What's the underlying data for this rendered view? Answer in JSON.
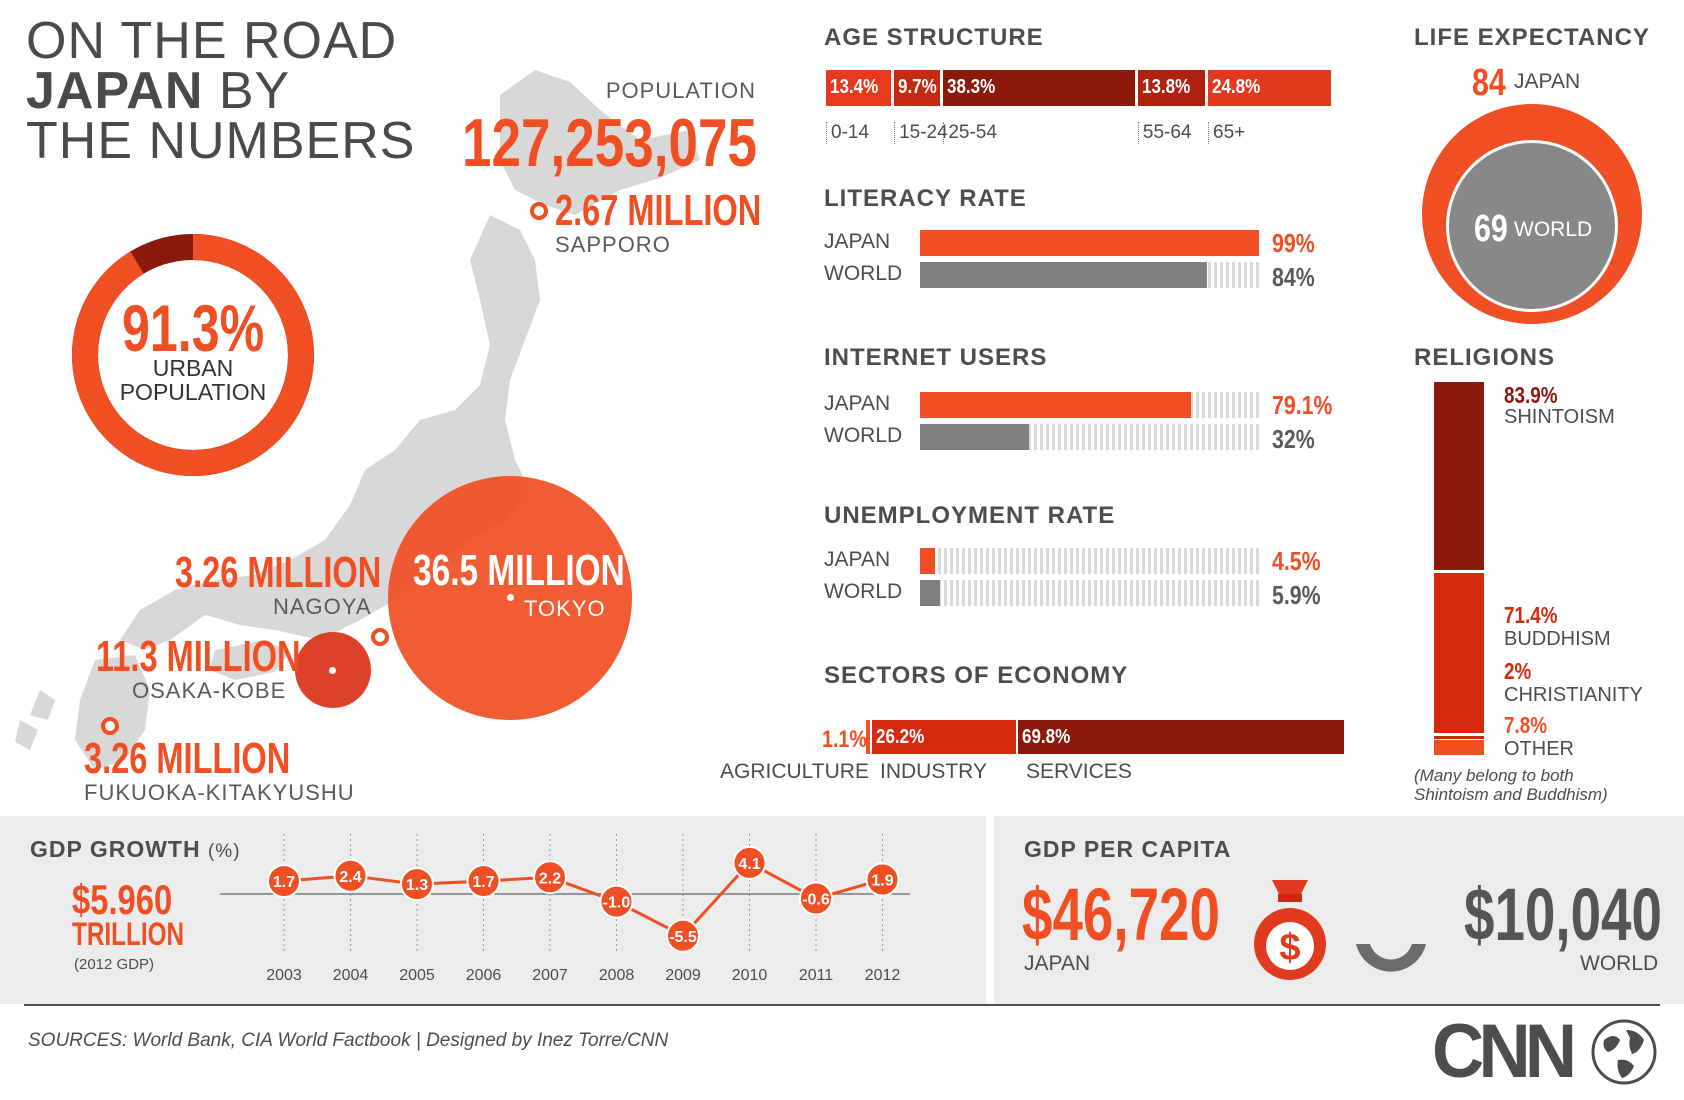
{
  "title": {
    "line1": "ON THE ROAD",
    "line2_bold": "JAPAN",
    "line2_rest": " BY",
    "line3": "THE NUMBERS"
  },
  "population": {
    "label": "POPULATION",
    "value": "127,253,075"
  },
  "urban": {
    "value": "91.3%",
    "line1": "URBAN",
    "line2": "POPULATION",
    "fraction": 0.913
  },
  "cities": {
    "sapporo": {
      "value": "2.67 MILLION",
      "name": "SAPPORO"
    },
    "tokyo": {
      "value": "36.5 MILLION",
      "name": "TOKYO"
    },
    "nagoya": {
      "value": "3.26 MILLION",
      "name": "NAGOYA"
    },
    "osaka": {
      "value": "11.3 MILLION",
      "name": "OSAKA-KOBE"
    },
    "fukuoka": {
      "value": "3.26 MILLION",
      "name": "FUKUOKA-KITAKYUSHU"
    }
  },
  "age": {
    "title": "AGE STRUCTURE",
    "segments": [
      {
        "pct": "13.4%",
        "range": "0-14",
        "value": 13.4,
        "color": "#e8391e"
      },
      {
        "pct": "9.7%",
        "range": "15-24",
        "value": 9.7,
        "color": "#c72a12"
      },
      {
        "pct": "38.3%",
        "range": "25-54",
        "value": 38.3,
        "color": "#8b1a0c"
      },
      {
        "pct": "13.8%",
        "range": "55-64",
        "value": 13.8,
        "color": "#b0220f"
      },
      {
        "pct": "24.8%",
        "range": "65+",
        "value": 24.8,
        "color": "#e23a1f"
      }
    ]
  },
  "literacy": {
    "title": "LITERACY RATE",
    "japan_label": "JAPAN",
    "world_label": "WORLD",
    "japan_pct": "99%",
    "world_pct": "84%",
    "japan": 99,
    "world": 84
  },
  "internet": {
    "title": "INTERNET USERS",
    "japan_label": "JAPAN",
    "world_label": "WORLD",
    "japan_pct": "79.1%",
    "world_pct": "32%",
    "japan": 79.1,
    "world": 32
  },
  "unemployment": {
    "title": "UNEMPLOYMENT RATE",
    "japan_label": "JAPAN",
    "world_label": "WORLD",
    "japan_pct": "4.5%",
    "world_pct": "5.9%",
    "japan": 4.5,
    "world": 5.9
  },
  "sectors": {
    "title": "SECTORS OF ECONOMY",
    "agriculture": {
      "pct": "1.1%",
      "name": "AGRICULTURE",
      "value": 1.1
    },
    "industry": {
      "pct": "26.2%",
      "name": "INDUSTRY",
      "value": 26.2
    },
    "services": {
      "pct": "69.8%",
      "name": "SERVICES",
      "value": 69.8
    }
  },
  "life": {
    "title": "LIFE EXPECTANCY",
    "japan_value": "84",
    "japan_label": "JAPAN",
    "world_value": "69",
    "world_label": "WORLD"
  },
  "religions": {
    "title": "RELIGIONS",
    "items": [
      {
        "pct": "83.9%",
        "name": "SHINTOISM",
        "value": 83.9,
        "color": "#8b1a0c"
      },
      {
        "pct": "71.4%",
        "name": "BUDDHISM",
        "value": 71.4,
        "color": "#d62a10"
      },
      {
        "pct": "2%",
        "name": "CHRISTIANITY",
        "value": 2,
        "color": "#c72a12"
      },
      {
        "pct": "7.8%",
        "name": "OTHER",
        "value": 7.8,
        "color": "#f04e23"
      }
    ],
    "note_line1": "(Many belong to both",
    "note_line2": "Shintoism and Buddhism)"
  },
  "gdp_growth": {
    "title": "GDP GROWTH",
    "unit": "(%)",
    "gdp_value": "$5.960",
    "gdp_unit": "TRILLION",
    "gdp_note": "(2012 GDP)"
  },
  "gdp_capita": {
    "title": "GDP PER CAPITA",
    "japan_value": "$46,720",
    "japan_label": "JAPAN",
    "world_value": "$10,040",
    "world_label": "WORLD"
  },
  "footer": {
    "sources": "SOURCES: World Bank, CIA World Factbook | Designed by Inez Torre/CNN",
    "logo": "CNN"
  },
  "colors": {
    "accent": "#f04e23",
    "dark_red": "#8b1a0c",
    "gray": "#808080",
    "panel": "#ececec"
  },
  "chart_data": [
    {
      "type": "line",
      "title": "GDP GROWTH (%)",
      "x": [
        "2003",
        "2004",
        "2005",
        "2006",
        "2007",
        "2008",
        "2009",
        "2010",
        "2011",
        "2012"
      ],
      "series": [
        {
          "values": [
            1.7,
            2.4,
            1.3,
            1.7,
            2.2,
            -1.0,
            -5.5,
            4.1,
            -0.6,
            1.9
          ]
        }
      ],
      "labels": [
        "1.7",
        "2.4",
        "1.3",
        "1.7",
        "2.2",
        "-1.0",
        "-5.5",
        "4.1",
        "-0.6",
        "1.9"
      ],
      "grid": true
    }
  ]
}
